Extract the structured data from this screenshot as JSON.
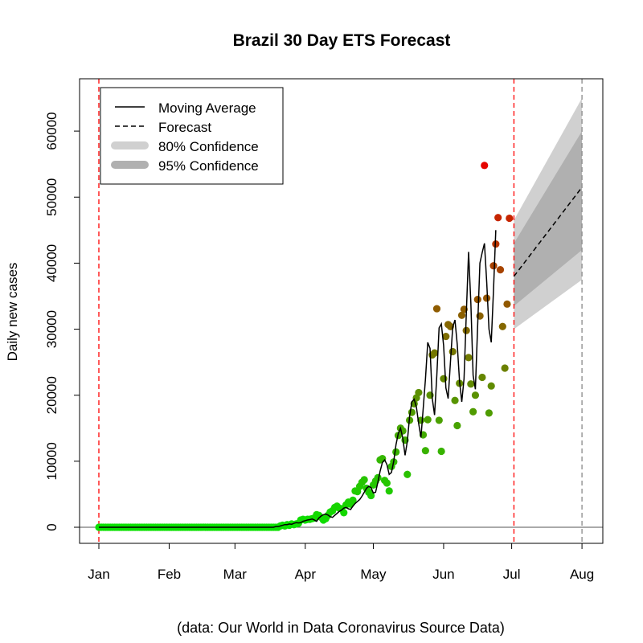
{
  "chart_data": {
    "type": "line",
    "title": "Brazil 30 Day ETS Forecast",
    "xlabel": "",
    "ylabel": "Daily new cases",
    "caption": "(data: Our World in Data Coronavirus Source Data)",
    "x_tick_labels": [
      "Jan",
      "Feb",
      "Mar",
      "Apr",
      "May",
      "Jun",
      "Jul",
      "Aug"
    ],
    "x_tick_days": [
      0,
      31,
      60,
      91,
      121,
      152,
      182,
      213
    ],
    "y_ticks": [
      0,
      10000,
      20000,
      30000,
      40000,
      50000,
      60000
    ],
    "ylim": [
      -2500,
      67500
    ],
    "legend_position": "top-left",
    "legend": [
      {
        "label": "Moving Average",
        "style": "solid"
      },
      {
        "label": "Forecast",
        "style": "dashed"
      },
      {
        "label": "80% Confidence",
        "style": "band",
        "color": "#d0d0d0"
      },
      {
        "label": "95% Confidence",
        "style": "band",
        "color": "#b0b0b0"
      }
    ],
    "vertical_lines": [
      {
        "day": 0,
        "color": "#ff0000",
        "style": "dashed"
      },
      {
        "day": 183,
        "color": "#ff0000",
        "style": "dashed"
      },
      {
        "day": 213,
        "color": "#888888",
        "style": "dashed"
      }
    ],
    "observed_day_start": 0,
    "observed": [
      0,
      0,
      0,
      0,
      0,
      0,
      0,
      0,
      0,
      0,
      0,
      0,
      0,
      0,
      0,
      0,
      0,
      0,
      0,
      0,
      0,
      0,
      0,
      0,
      0,
      0,
      0,
      0,
      0,
      0,
      0,
      0,
      0,
      0,
      0,
      0,
      0,
      0,
      0,
      0,
      0,
      0,
      0,
      0,
      0,
      0,
      0,
      0,
      0,
      0,
      0,
      0,
      0,
      0,
      0,
      0,
      0,
      0,
      0,
      0,
      0,
      0,
      0,
      0,
      0,
      0,
      0,
      0,
      0,
      0,
      0,
      0,
      0,
      0,
      0,
      0,
      0,
      0,
      0,
      0,
      200,
      300,
      200,
      400,
      300,
      500,
      400,
      500,
      600,
      1100,
      1200,
      1100,
      1200,
      1200,
      1300,
      1400,
      1900,
      1800,
      1500,
      1100,
      1300,
      1800,
      2300,
      2500,
      3000,
      3200,
      2900,
      2800,
      2200,
      3400,
      3800,
      3500,
      4100,
      5500,
      5400,
      6200,
      6800,
      7200,
      5900,
      5300,
      4800,
      6400,
      7000,
      7500,
      10200,
      10400,
      7100,
      6700,
      5500,
      9200,
      9900,
      11400,
      13900,
      15000,
      14600,
      13200,
      8000,
      16200,
      17400,
      18700,
      19600,
      20400,
      16200,
      14000,
      11600,
      16300,
      20000,
      26100,
      26400,
      33100,
      16200,
      11500,
      22500,
      28900,
      30700,
      30400,
      26600,
      19200,
      15400,
      21800,
      32100,
      33000,
      29800,
      25700,
      21700,
      17500,
      20000,
      34500,
      32000,
      22700,
      54800,
      34700,
      17300,
      21400,
      39600,
      42900,
      46900,
      39000,
      30400,
      24100,
      33800,
      46800
    ],
    "moving_average": [
      0,
      0,
      0,
      0,
      0,
      0,
      0,
      0,
      0,
      0,
      0,
      0,
      0,
      0,
      0,
      0,
      0,
      0,
      0,
      0,
      0,
      0,
      0,
      0,
      0,
      0,
      0,
      0,
      0,
      0,
      0,
      0,
      0,
      0,
      0,
      0,
      0,
      0,
      0,
      0,
      0,
      0,
      0,
      0,
      0,
      0,
      0,
      0,
      0,
      0,
      0,
      0,
      0,
      0,
      0,
      0,
      0,
      0,
      0,
      0,
      0,
      0,
      0,
      0,
      0,
      0,
      0,
      0,
      0,
      0,
      0,
      0,
      0,
      0,
      0,
      0,
      0,
      0,
      100,
      100,
      200,
      300,
      400,
      400,
      500,
      450,
      600,
      700,
      650,
      700,
      900,
      1000,
      1100,
      1150,
      1250,
      1100,
      900,
      1400,
      1700,
      1900,
      2000,
      1850,
      1600,
      1500,
      1800,
      2100,
      2400,
      2600,
      2900,
      3000,
      2800,
      2700,
      3200,
      3600,
      3900,
      4200,
      4700,
      5300,
      5900,
      6200,
      6000,
      5200,
      5300,
      6800,
      8500,
      9800,
      10200,
      9500,
      8000,
      8300,
      10000,
      12500,
      14200,
      15000,
      13500,
      10900,
      13000,
      16800,
      19000,
      19400,
      18200,
      15700,
      13600,
      18000,
      22500,
      28000,
      27100,
      19500,
      17000,
      23000,
      30200,
      30800,
      27500,
      21100,
      19500,
      25000,
      30300,
      31400,
      27700,
      22200,
      19000,
      22500,
      32300,
      41700,
      34000,
      23000,
      20900,
      30500,
      40000,
      41600,
      43000,
      37100,
      30000,
      28000,
      36000,
      45000
    ],
    "forecast_day_start": 183,
    "forecast_day_end": 213,
    "forecast_start": 38000,
    "forecast_end": 51500,
    "ci80_start": [
      33500,
      43000
    ],
    "ci80_end": [
      42000,
      60000
    ],
    "ci95_start": [
      30000,
      46500
    ],
    "ci95_end": [
      37500,
      65000
    ]
  }
}
